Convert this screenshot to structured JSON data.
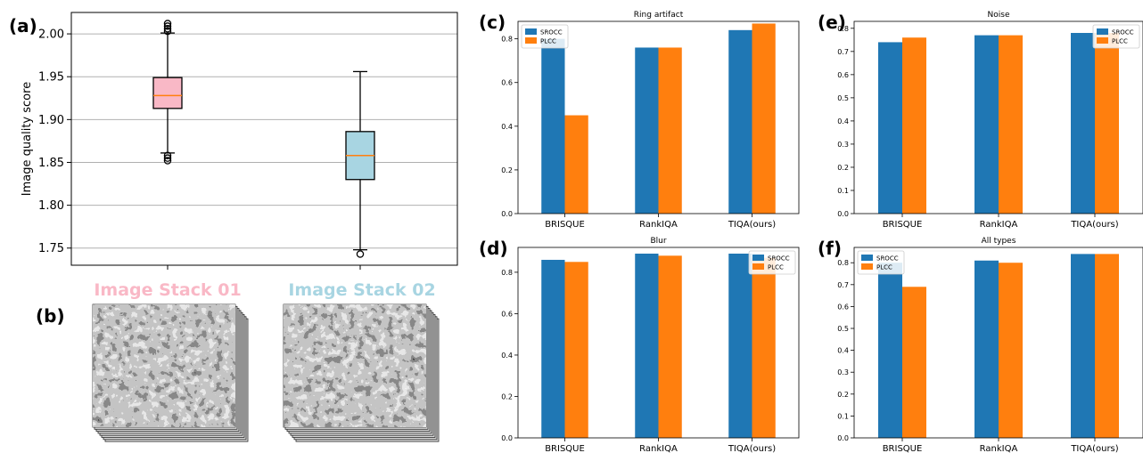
{
  "panel_labels": [
    "(a)",
    "(b)",
    "(c)",
    "(d)",
    "(e)",
    "(f)"
  ],
  "colors": {
    "sro": "#1f77b4",
    "plcc": "#ff7f0e",
    "stack1": "#f9b8c6",
    "stack2": "#a8d5e2",
    "median": "#ff7f0e"
  },
  "stack_labels": [
    "Image Stack 01",
    "Image Stack 02"
  ],
  "chart_data": [
    {
      "panel": "(a)",
      "type": "box",
      "ylabel": "Image quality score",
      "ylim": [
        1.73,
        2.025
      ],
      "yticks": [
        1.75,
        1.8,
        1.85,
        1.9,
        1.95,
        2.0
      ],
      "grid": true,
      "boxes": [
        {
          "name": "Image Stack 01",
          "whisker_low": 1.861,
          "q1": 1.913,
          "median": 1.928,
          "q3": 1.949,
          "whisker_high": 2.001,
          "outliers": [
            1.852,
            1.855,
            1.858,
            2.003,
            2.006,
            2.009,
            2.012
          ]
        },
        {
          "name": "Image Stack 02",
          "whisker_low": 1.748,
          "q1": 1.83,
          "median": 1.858,
          "q3": 1.886,
          "whisker_high": 1.956,
          "outliers": [
            1.743
          ]
        }
      ]
    },
    {
      "panel": "(c)",
      "type": "bar",
      "title": "Ring artifact",
      "categories": [
        "BRISQUE",
        "RankIQA",
        "TIQA(ours)"
      ],
      "series": [
        {
          "name": "SROCC",
          "values": [
            0.8,
            0.76,
            0.84
          ]
        },
        {
          "name": "PLCC",
          "values": [
            0.45,
            0.76,
            0.87
          ]
        }
      ],
      "ylim": [
        0,
        0.88
      ],
      "yticks": [
        0.0,
        0.2,
        0.4,
        0.6,
        0.8
      ],
      "legend": "top-left"
    },
    {
      "panel": "(d)",
      "type": "bar",
      "title": "Blur",
      "categories": [
        "BRISQUE",
        "RankIQA",
        "TIQA(ours)"
      ],
      "series": [
        {
          "name": "SROCC",
          "values": [
            0.86,
            0.89,
            0.89
          ]
        },
        {
          "name": "PLCC",
          "values": [
            0.85,
            0.88,
            0.87
          ]
        }
      ],
      "ylim": [
        0,
        0.92
      ],
      "yticks": [
        0.0,
        0.2,
        0.4,
        0.6,
        0.8
      ],
      "legend": "top-right"
    },
    {
      "panel": "(e)",
      "type": "bar",
      "title": "Noise",
      "categories": [
        "BRISQUE",
        "RankIQA",
        "TIQA(ours)"
      ],
      "series": [
        {
          "name": "SROCC",
          "values": [
            0.74,
            0.77,
            0.78
          ]
        },
        {
          "name": "PLCC",
          "values": [
            0.76,
            0.77,
            0.78
          ]
        }
      ],
      "ylim": [
        0,
        0.83
      ],
      "yticks": [
        0.0,
        0.1,
        0.2,
        0.3,
        0.4,
        0.5,
        0.6,
        0.7,
        0.8
      ],
      "legend": "top-right"
    },
    {
      "panel": "(f)",
      "type": "bar",
      "title": "All types",
      "categories": [
        "BRISQUE",
        "RankIQA",
        "TIQA(ours)"
      ],
      "series": [
        {
          "name": "SROCC",
          "values": [
            0.8,
            0.81,
            0.84
          ]
        },
        {
          "name": "PLCC",
          "values": [
            0.69,
            0.8,
            0.84
          ]
        }
      ],
      "ylim": [
        0,
        0.87
      ],
      "yticks": [
        0.0,
        0.1,
        0.2,
        0.3,
        0.4,
        0.5,
        0.6,
        0.7,
        0.8
      ],
      "legend": "top-left"
    }
  ]
}
